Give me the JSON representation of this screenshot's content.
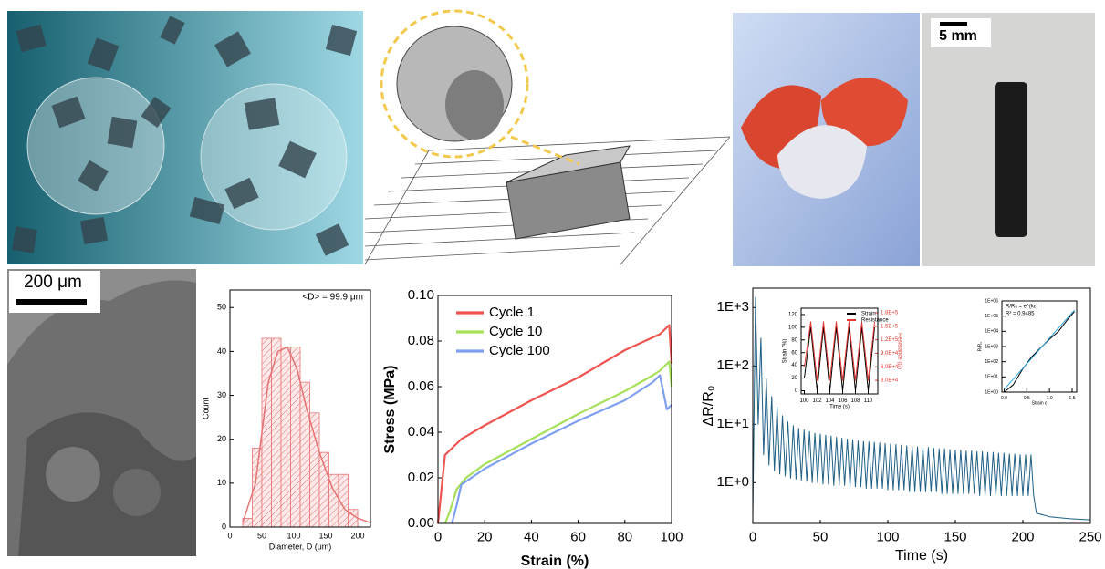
{
  "images": {
    "scale_bar_photo": "5 mm",
    "scale_bar_sem": "200 μm"
  },
  "chart_data": [
    {
      "type": "histogram",
      "xlabel": "Diameter, D (um)",
      "ylabel": "Count",
      "annotations": [
        "<D> = 99.9 μm"
      ],
      "bins": [
        20,
        35,
        50,
        65,
        80,
        95,
        110,
        125,
        140,
        155,
        170,
        185,
        200
      ],
      "counts": [
        2,
        18,
        43,
        43,
        41,
        41,
        33,
        26,
        17,
        12,
        12,
        4
      ],
      "color": "#e57373",
      "fit": {
        "x": [
          20,
          40,
          60,
          75,
          90,
          105,
          120,
          140,
          160,
          180,
          200,
          220
        ],
        "values": [
          1,
          10,
          33,
          40,
          41,
          36,
          27,
          17,
          9,
          4,
          2,
          1
        ]
      },
      "xlim": [
        0,
        220
      ],
      "xticks": [
        0,
        50,
        100,
        150,
        200
      ],
      "ylim": [
        0,
        54
      ],
      "yticks": [
        0,
        10,
        20,
        30,
        40,
        50
      ]
    },
    {
      "type": "line",
      "xlabel": "Strain (%)",
      "ylabel": "Stress (MPa)",
      "series": [
        {
          "name": "Cycle 1",
          "color": "#ef5350",
          "x": [
            0,
            2,
            3,
            5,
            7,
            10,
            20,
            40,
            60,
            80,
            95,
            99,
            100
          ],
          "values": [
            0,
            0.02,
            0.03,
            0.032,
            0.034,
            0.037,
            0.043,
            0.054,
            0.064,
            0.076,
            0.083,
            0.087,
            0.07
          ]
        },
        {
          "name": "Cycle 10",
          "color": "#a6e05a",
          "x": [
            3,
            5,
            8,
            12,
            20,
            40,
            60,
            80,
            92,
            95,
            99,
            100
          ],
          "values": [
            0,
            0.005,
            0.015,
            0.02,
            0.026,
            0.037,
            0.048,
            0.058,
            0.065,
            0.067,
            0.071,
            0.06
          ]
        },
        {
          "name": "Cycle 100",
          "color": "#7f9ff0",
          "x": [
            6,
            8,
            10,
            20,
            40,
            60,
            80,
            92,
            95,
            98,
            100
          ],
          "values": [
            0,
            0.008,
            0.017,
            0.024,
            0.035,
            0.045,
            0.054,
            0.062,
            0.065,
            0.05,
            0.052
          ]
        }
      ],
      "xlim": [
        0,
        100
      ],
      "xticks": [
        0,
        20,
        40,
        60,
        80,
        100
      ],
      "ylim": [
        0,
        0.1
      ],
      "yticks": [
        {
          "value": 0,
          "label": "0.00"
        },
        {
          "value": 0.02,
          "label": "0.02"
        },
        {
          "value": 0.04,
          "label": "0.04"
        },
        {
          "value": 0.06,
          "label": "0.06"
        },
        {
          "value": 0.08,
          "label": "0.08"
        },
        {
          "value": 0.1,
          "label": "0.10"
        }
      ],
      "legend": "upper left"
    },
    {
      "type": "line",
      "xlabel": "Time (s)",
      "ylabel": "ΔR/R₀",
      "log_y": true,
      "x": [
        0,
        2,
        4,
        6,
        8,
        10,
        12,
        14,
        16,
        18,
        20,
        22,
        24,
        26,
        28,
        30,
        32,
        34,
        36,
        38,
        40,
        42,
        44,
        46,
        48,
        50,
        52,
        54,
        56,
        58,
        60,
        62,
        64,
        66,
        68,
        70,
        72,
        74,
        76,
        78,
        80,
        82,
        84,
        86,
        88,
        90,
        92,
        94,
        96,
        98,
        100,
        102,
        104,
        106,
        108,
        110,
        112,
        114,
        116,
        118,
        120,
        122,
        124,
        126,
        128,
        130,
        132,
        134,
        136,
        138,
        140,
        142,
        144,
        146,
        148,
        150,
        152,
        154,
        156,
        158,
        160,
        162,
        164,
        166,
        168,
        170,
        172,
        174,
        176,
        178,
        180,
        182,
        184,
        186,
        188,
        190,
        192,
        194,
        196,
        198,
        200,
        202,
        204,
        206,
        208,
        210,
        220,
        235,
        250
      ],
      "series": [
        {
          "color": "#1f5f86",
          "values": [
            0.25,
            1500,
            10,
            300,
            3,
            60,
            2,
            30,
            1.6,
            20,
            1.4,
            14,
            1.3,
            11,
            1.2,
            9.5,
            1.15,
            8.5,
            1.1,
            8,
            1.05,
            7.5,
            1,
            7,
            1,
            6.8,
            0.95,
            6.5,
            0.95,
            6.3,
            0.9,
            6,
            0.9,
            5.8,
            0.9,
            5.6,
            0.85,
            5.4,
            0.85,
            5.2,
            0.85,
            5.1,
            0.8,
            5,
            0.8,
            4.9,
            0.8,
            4.8,
            0.8,
            4.7,
            0.75,
            4.6,
            0.75,
            4.5,
            0.75,
            4.4,
            0.75,
            4.3,
            0.7,
            4.2,
            0.7,
            4.1,
            0.7,
            4,
            0.7,
            4,
            0.7,
            3.9,
            0.7,
            3.8,
            0.65,
            3.8,
            0.65,
            3.7,
            0.65,
            3.6,
            0.65,
            3.6,
            0.65,
            3.5,
            0.65,
            3.5,
            0.65,
            3.4,
            0.6,
            3.4,
            0.6,
            3.3,
            0.6,
            3.3,
            0.6,
            3.2,
            0.6,
            3.2,
            0.6,
            3.1,
            0.6,
            3.1,
            0.6,
            3,
            0.6,
            3,
            0.6,
            3,
            0.6,
            0.3,
            0.26,
            0.24,
            0.23
          ]
        }
      ],
      "xlim": [
        0,
        250
      ],
      "xticks": [
        0,
        50,
        100,
        150,
        200,
        250
      ],
      "ylim": [
        0.2,
        2150
      ],
      "yticks": [
        {
          "value": 1,
          "label": "1E+0"
        },
        {
          "value": 10,
          "label": "1E+1"
        },
        {
          "value": 100,
          "label": "1E+2"
        },
        {
          "value": 1000,
          "label": "1E+3"
        }
      ]
    },
    {
      "type": "line",
      "xlabel": "Time (s)",
      "ylabel": "Strain (%)",
      "y2label": "Resistance (Ω)",
      "y2color": "#e53935",
      "x": [
        100,
        101,
        102,
        103,
        104,
        105,
        106,
        107,
        108,
        109,
        110,
        111
      ],
      "series": [
        {
          "name": "Strain",
          "color": "#000000",
          "values": [
            20,
            100,
            0,
            100,
            0,
            100,
            0,
            100,
            0,
            100,
            0,
            100
          ]
        },
        {
          "name": "Resistance",
          "color": "#e53935",
          "axis": "y2",
          "values": [
            60000,
            160000,
            30000,
            160000,
            30000,
            160000,
            30000,
            160000,
            30000,
            160000,
            30000,
            160000
          ]
        }
      ],
      "xlim": [
        99.5,
        111.5
      ],
      "xticks": [
        100,
        102,
        104,
        106,
        108,
        110
      ],
      "ylim": [
        -5,
        130
      ],
      "yticks": [
        0,
        20,
        40,
        60,
        80,
        100,
        120
      ],
      "y2lim": [
        0,
        190000
      ],
      "y2ticks": [
        {
          "value": 30000,
          "label": "3.0E+4"
        },
        {
          "value": 60000,
          "label": "6.0E+4"
        },
        {
          "value": 90000,
          "label": "9.0E+4"
        },
        {
          "value": 120000,
          "label": "1.2E+5"
        },
        {
          "value": 150000,
          "label": "1.5E+5"
        },
        {
          "value": 180000,
          "label": "1.8E+5"
        }
      ],
      "legend": "upper right"
    },
    {
      "type": "line",
      "xlabel": "Strain ε",
      "ylabel": "R/R₀",
      "log_y": true,
      "annotations": [
        "R/R₀ = e^(kε)",
        "R² = 0.9485"
      ],
      "series": [
        {
          "color": "#000000",
          "x": [
            0,
            0.2,
            0.4,
            0.6,
            0.8,
            1,
            1.2,
            1.4,
            1.55
          ],
          "values": [
            1,
            3,
            30,
            200,
            800,
            3000,
            10000,
            60000,
            200000
          ]
        },
        {
          "color": "#29a3e0",
          "x": [
            0,
            1.55
          ],
          "values": [
            1.5,
            250000
          ]
        }
      ],
      "xlim": [
        -0.05,
        1.6
      ],
      "xticks": [
        {
          "value": 0,
          "label": "0.0"
        },
        {
          "value": 0.5,
          "label": "0.5"
        },
        {
          "value": 1,
          "label": "1.0"
        },
        {
          "value": 1.5,
          "label": "1.5"
        }
      ],
      "ylim": [
        1,
        1000000
      ],
      "yticks": [
        {
          "value": 1,
          "label": "1E+00"
        },
        {
          "value": 10,
          "label": "1E+01"
        },
        {
          "value": 100,
          "label": "1E+02"
        },
        {
          "value": 1000,
          "label": "1E+03"
        },
        {
          "value": 10000,
          "label": "1E+04"
        },
        {
          "value": 100000,
          "label": "1E+05"
        },
        {
          "value": 1000000,
          "label": "1E+06"
        }
      ]
    }
  ]
}
